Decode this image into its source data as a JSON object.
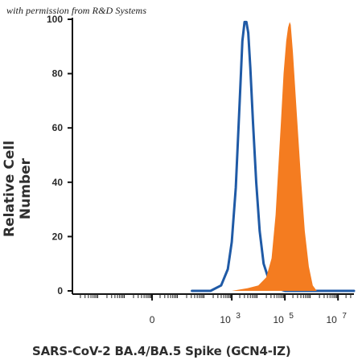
{
  "watermark": "with permission from R&D Systems",
  "chart_data": {
    "type": "area",
    "title": "",
    "xlabel": "SARS-CoV-2 BA.4/BA.5 Spike (GCN4-IZ)",
    "ylabel": "Relative Cell Number",
    "x_scale": "log",
    "xlim": [
      -3,
      7.6
    ],
    "ylim": [
      0,
      100
    ],
    "y_ticks": [
      {
        "value": 0,
        "label": "0"
      },
      {
        "value": 20,
        "label": "20"
      },
      {
        "value": 40,
        "label": "40"
      },
      {
        "value": 60,
        "label": "60"
      },
      {
        "value": 80,
        "label": "80"
      },
      {
        "value": 100,
        "label": "100"
      }
    ],
    "x_ticks": [
      {
        "value": 0,
        "label": "0",
        "exp": ""
      },
      {
        "value": 3,
        "label": "10",
        "exp": "3"
      },
      {
        "value": 5,
        "label": "10",
        "exp": "5"
      },
      {
        "value": 7,
        "label": "10",
        "exp": "7"
      }
    ],
    "series": [
      {
        "style": "outline",
        "color": "#1f5aa6",
        "x": [
          1.5,
          2.2,
          2.6,
          2.85,
          3.0,
          3.15,
          3.3,
          3.4,
          3.48,
          3.55,
          3.62,
          3.7,
          3.8,
          3.92,
          4.05,
          4.2,
          4.4,
          4.7,
          5.0,
          6.0,
          7.6
        ],
        "y": [
          0,
          0,
          2,
          8,
          18,
          38,
          70,
          92,
          99,
          99,
          95,
          82,
          62,
          40,
          22,
          10,
          4,
          1,
          0,
          0,
          0
        ]
      },
      {
        "style": "filled",
        "color": "#f47c20",
        "x": [
          3.0,
          3.6,
          4.0,
          4.3,
          4.5,
          4.65,
          4.75,
          4.85,
          4.95,
          5.05,
          5.12,
          5.18,
          5.22,
          5.3,
          5.45,
          5.6,
          5.75,
          5.9,
          6.05,
          6.2
        ],
        "y": [
          0,
          1,
          2,
          5,
          12,
          28,
          45,
          62,
          80,
          92,
          97,
          99,
          98,
          88,
          65,
          42,
          22,
          9,
          2,
          0
        ]
      }
    ]
  }
}
